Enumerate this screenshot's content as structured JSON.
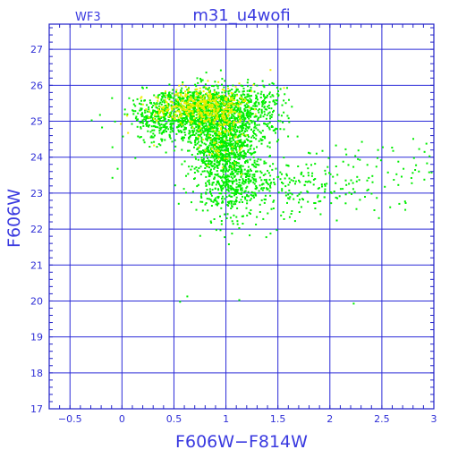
{
  "chart_data": {
    "type": "scatter",
    "title": "m31_u4wofi",
    "chip": "WF3",
    "xlabel": "F606W−F814W",
    "ylabel": "F606W",
    "xlim": [
      -0.7,
      3.0
    ],
    "ylim": [
      27.7,
      17.0
    ],
    "x_ticks": [
      -0.5,
      0,
      0.5,
      1,
      1.5,
      2,
      2.5,
      3
    ],
    "x_tick_labels": [
      "−0.5",
      "0",
      "0.5",
      "1",
      "1.5",
      "2",
      "2.5",
      "3"
    ],
    "y_ticks": [
      17,
      18,
      19,
      20,
      21,
      22,
      23,
      24,
      25,
      26,
      27
    ],
    "y_tick_labels": [
      "17",
      "18",
      "19",
      "20",
      "21",
      "22",
      "23",
      "24",
      "25",
      "26",
      "27"
    ],
    "grid": true,
    "colors": {
      "axis": "#2020c8",
      "grid": "#2a2ad8",
      "text": "#3a3ae0",
      "green": "#00ee00",
      "yellow": "#eeee00"
    },
    "series": [
      {
        "color": "green",
        "points": [
          [
            0.55,
            20.0
          ],
          [
            1.12,
            20.05
          ],
          [
            0.62,
            20.15
          ],
          [
            2.22,
            19.95
          ],
          [
            1.05,
            21.9
          ],
          [
            1.22,
            21.85
          ],
          [
            1.38,
            21.8
          ],
          [
            1.42,
            21.9
          ],
          [
            1.48,
            22.0
          ],
          [
            0.88,
            22.3
          ],
          [
            0.95,
            22.25
          ],
          [
            1.28,
            22.15
          ],
          [
            1.55,
            22.3
          ],
          [
            1.62,
            22.45
          ],
          [
            1.7,
            22.5
          ],
          [
            1.85,
            22.6
          ],
          [
            1.9,
            22.8
          ],
          [
            2.05,
            22.9
          ],
          [
            2.2,
            23.0
          ],
          [
            2.35,
            23.1
          ],
          [
            2.52,
            23.2
          ],
          [
            2.65,
            23.25
          ],
          [
            2.78,
            23.3
          ],
          [
            2.9,
            23.4
          ],
          [
            2.97,
            23.6
          ],
          [
            2.82,
            23.8
          ],
          [
            2.65,
            23.9
          ],
          [
            2.45,
            24.0
          ],
          [
            2.28,
            23.95
          ],
          [
            2.12,
            23.9
          ],
          [
            1.97,
            23.75
          ],
          [
            1.82,
            23.5
          ],
          [
            1.75,
            23.25
          ],
          [
            1.6,
            23.1
          ],
          [
            1.92,
            24.2
          ],
          [
            2.05,
            24.35
          ],
          [
            2.3,
            24.45
          ],
          [
            2.6,
            24.2
          ],
          [
            2.85,
            24.25
          ],
          [
            2.92,
            24.4
          ],
          [
            1.02,
            21.6
          ],
          [
            0.98,
            21.8
          ],
          [
            0.9,
            22.0
          ],
          [
            0.85,
            22.2
          ],
          [
            1.12,
            22.05
          ],
          [
            1.32,
            22.5
          ],
          [
            1.45,
            22.6
          ],
          [
            1.58,
            22.75
          ],
          [
            1.68,
            22.95
          ],
          [
            1.78,
            23.05
          ],
          [
            1.88,
            23.15
          ],
          [
            2.0,
            23.05
          ],
          [
            2.15,
            23.25
          ],
          [
            2.25,
            23.35
          ],
          [
            2.4,
            23.5
          ],
          [
            2.55,
            23.6
          ],
          [
            2.7,
            23.7
          ],
          [
            2.8,
            24.0
          ],
          [
            2.95,
            24.05
          ],
          [
            2.5,
            24.3
          ],
          [
            2.15,
            24.1
          ],
          [
            1.98,
            24.0
          ],
          [
            1.72,
            23.6
          ],
          [
            1.65,
            23.45
          ],
          [
            -0.1,
            23.45
          ],
          [
            -0.05,
            23.7
          ],
          [
            -0.1,
            24.3
          ],
          [
            0.0,
            24.6
          ],
          [
            0.12,
            24.0
          ],
          [
            0.2,
            24.5
          ],
          [
            -0.2,
            24.85
          ],
          [
            -0.3,
            25.05
          ],
          [
            -0.22,
            25.2
          ],
          [
            0.02,
            25.35
          ],
          [
            0.1,
            25.6
          ],
          [
            0.22,
            25.05
          ],
          [
            1.5,
            25.2
          ],
          [
            1.6,
            25.0
          ],
          [
            1.68,
            24.6
          ],
          [
            1.55,
            24.8
          ],
          [
            1.45,
            25.6
          ],
          [
            1.35,
            25.5
          ],
          [
            1.3,
            25.8
          ],
          [
            1.58,
            25.95
          ],
          [
            1.2,
            26.1
          ]
        ],
        "clusters": [
          {
            "cx": 0.8,
            "cy": 25.2,
            "sx": 0.22,
            "sy": 0.38,
            "n": 950
          },
          {
            "cx": 0.98,
            "cy": 24.2,
            "sx": 0.16,
            "sy": 0.55,
            "n": 820
          },
          {
            "cx": 1.08,
            "cy": 23.1,
            "sx": 0.2,
            "sy": 0.42,
            "n": 260
          },
          {
            "cx": 0.32,
            "cy": 25.15,
            "sx": 0.13,
            "sy": 0.32,
            "n": 260
          },
          {
            "cx": 1.25,
            "cy": 25.2,
            "sx": 0.14,
            "sy": 0.45,
            "n": 220
          },
          {
            "cx": 1.5,
            "cy": 23.25,
            "sx": 0.35,
            "sy": 0.35,
            "n": 90
          },
          {
            "cx": 2.05,
            "cy": 23.35,
            "sx": 0.55,
            "sy": 0.45,
            "n": 120
          },
          {
            "cx": 0.9,
            "cy": 25.65,
            "sx": 0.28,
            "sy": 0.15,
            "n": 220
          }
        ]
      },
      {
        "color": "yellow",
        "points": [
          [
            0.05,
            24.7
          ],
          [
            0.3,
            24.35
          ],
          [
            1.1,
            24.45
          ],
          [
            1.55,
            25.95
          ],
          [
            -0.02,
            24.95
          ],
          [
            0.18,
            25.7
          ],
          [
            1.42,
            26.45
          ],
          [
            0.45,
            25.25
          ],
          [
            0.6,
            25.85
          ],
          [
            1.05,
            25.8
          ],
          [
            1.15,
            25.65
          ]
        ],
        "clusters": [
          {
            "cx": 0.72,
            "cy": 25.45,
            "sx": 0.16,
            "sy": 0.22,
            "n": 240
          },
          {
            "cx": 0.95,
            "cy": 25.3,
            "sx": 0.15,
            "sy": 0.3,
            "n": 160
          },
          {
            "cx": 0.95,
            "cy": 24.4,
            "sx": 0.1,
            "sy": 0.35,
            "n": 60
          },
          {
            "cx": 0.4,
            "cy": 25.3,
            "sx": 0.12,
            "sy": 0.2,
            "n": 50
          }
        ]
      }
    ]
  }
}
